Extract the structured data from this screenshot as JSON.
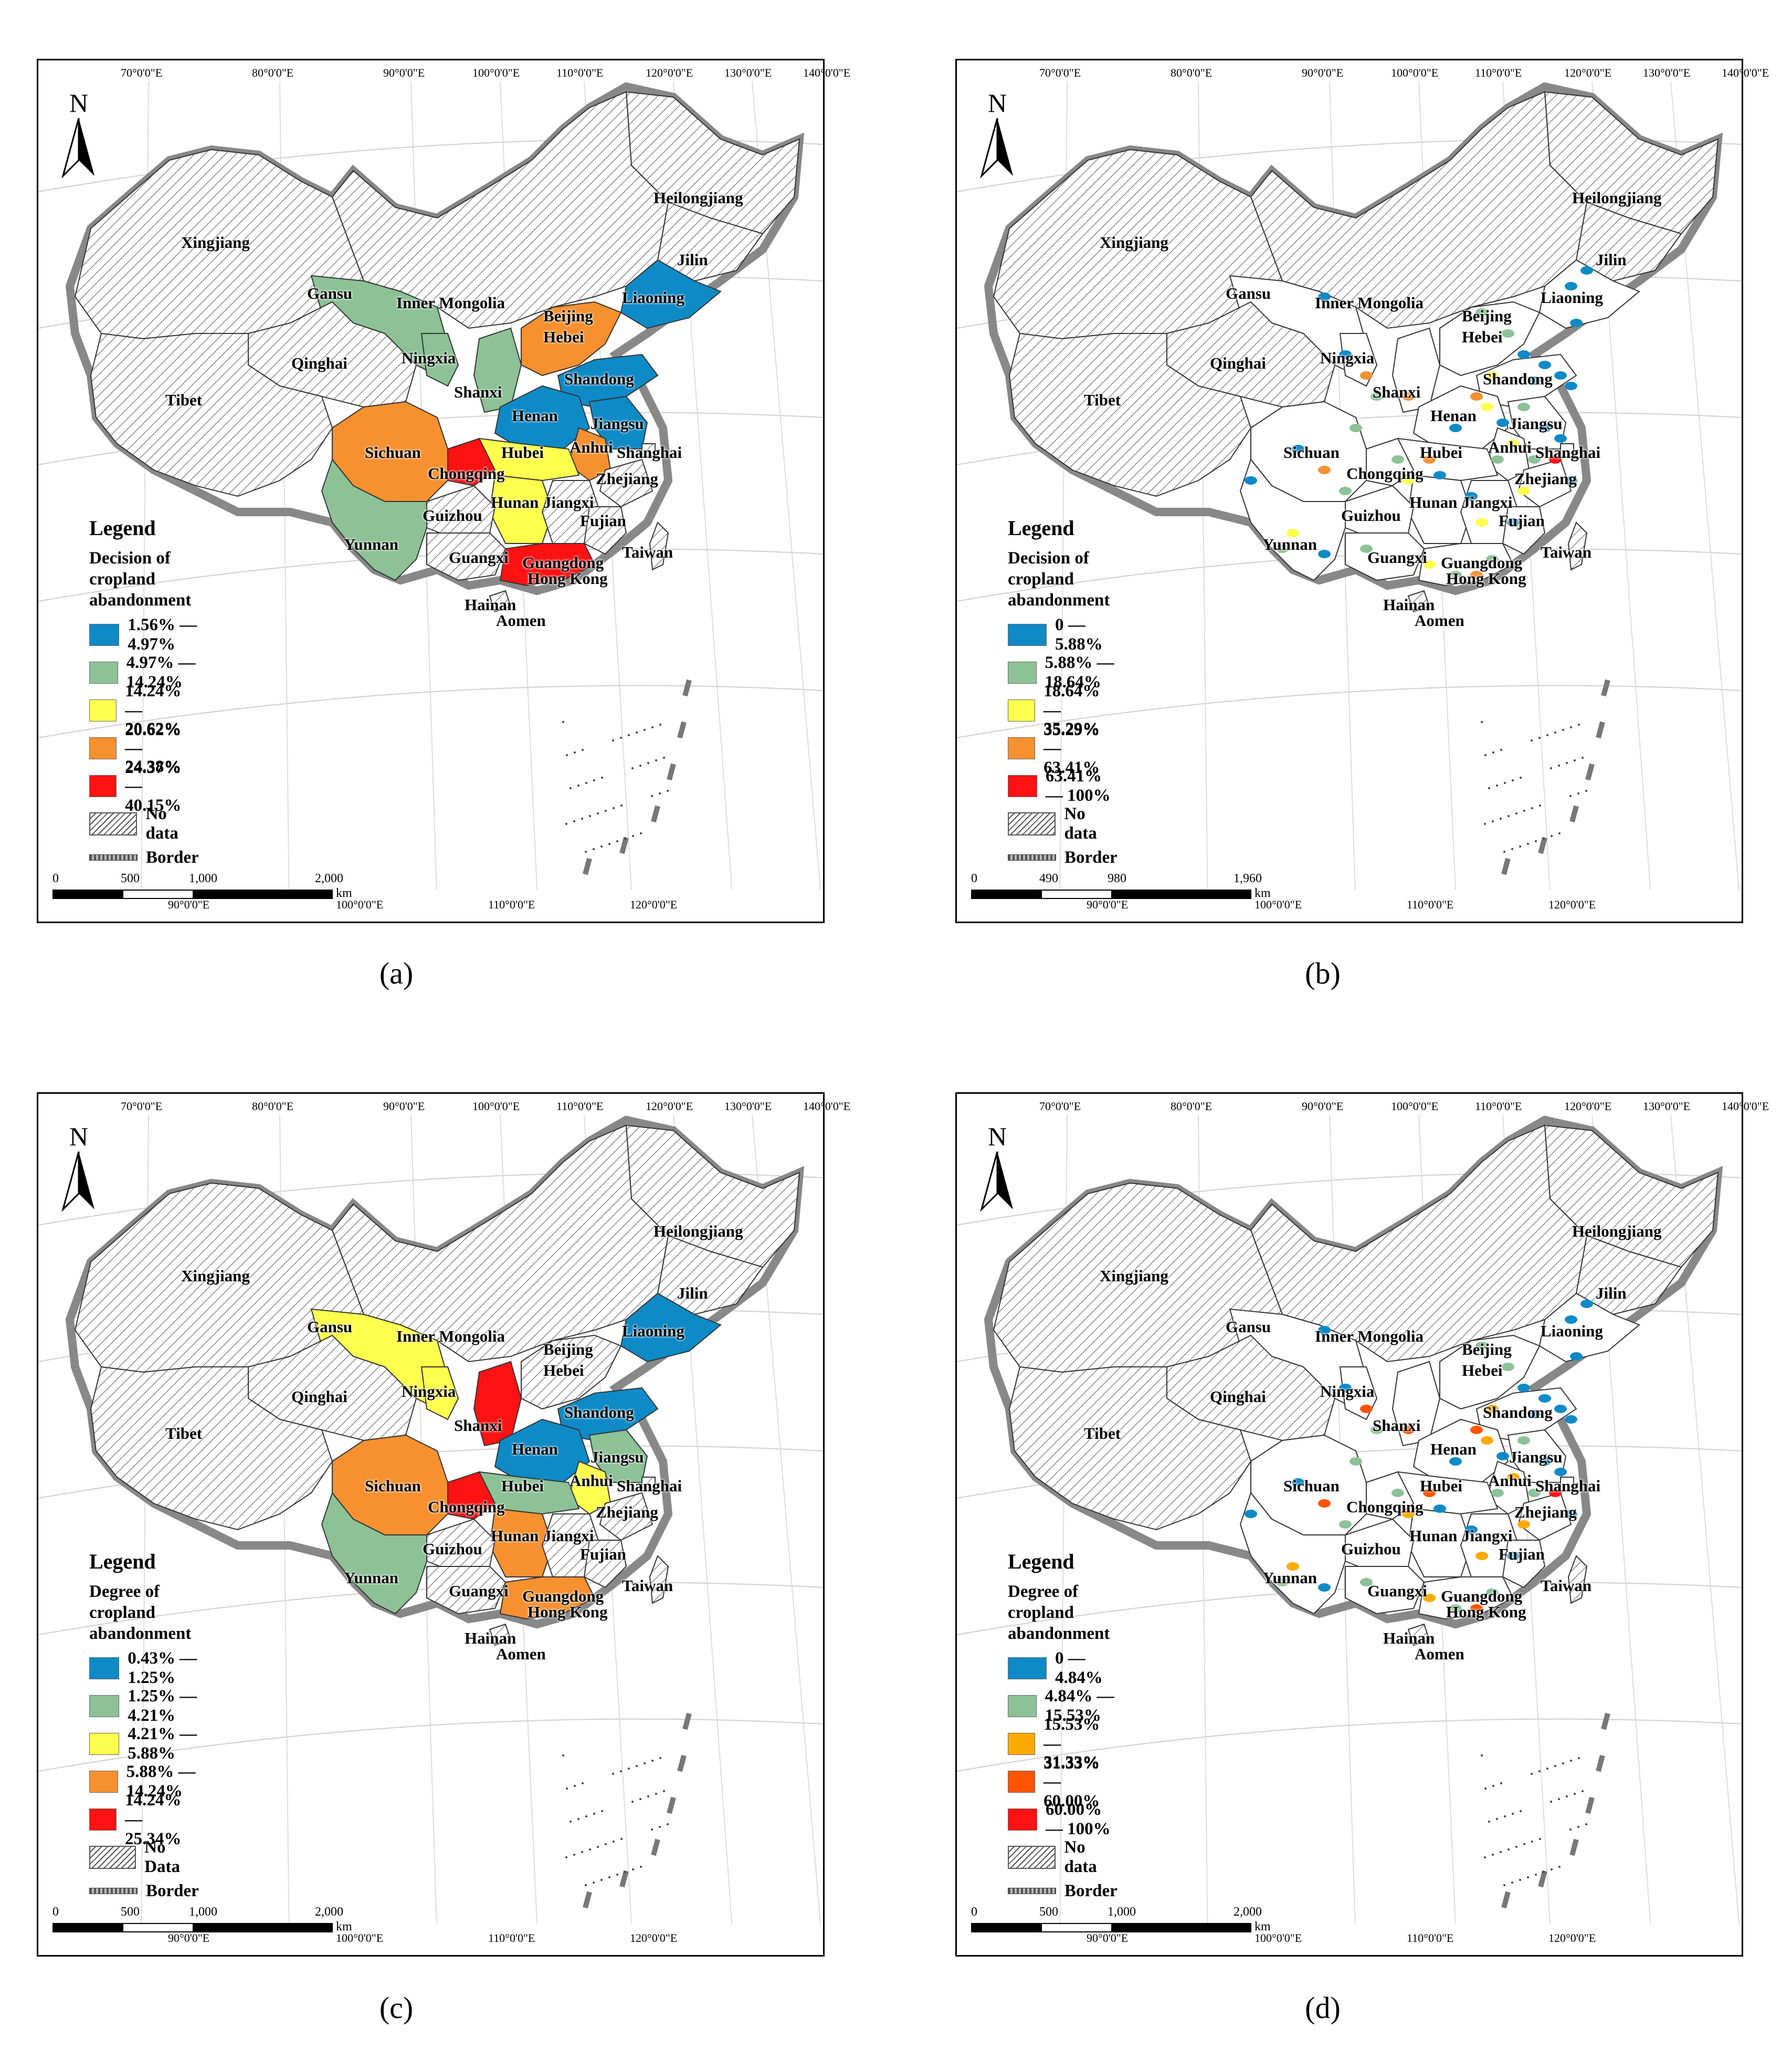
{
  "graticule": {
    "top": [
      "70°0'0\"E",
      "80°0'0\"E",
      "90°0'0\"E",
      "100°0'0\"E",
      "110°0'0\"E",
      "120°0'0\"E",
      "130°0'0\"E",
      "140°0'0\"E"
    ],
    "bottom": [
      "90°0'0\"E",
      "100°0'0\"E",
      "110°0'0\"E",
      "120°0'0\"E"
    ]
  },
  "north_label": "N",
  "border_label": "Border",
  "legend_title": "Legend",
  "scale_unit": "km",
  "panels": [
    {
      "caption": "(a)",
      "subtitle_line1": "Decision of",
      "subtitle_line2": "cropland abandonment",
      "classes": [
        {
          "label": "1.56% — 4.97%",
          "color": "#0e8ac7"
        },
        {
          "label": "4.97% — 14.24%",
          "color": "#8cc296"
        },
        {
          "label": "14.24% — 20.62%",
          "color": "#ffff4d"
        },
        {
          "label": "20.62% — 24.37%",
          "color": "#f7912f"
        },
        {
          "label": "24.38% — 40.15%",
          "color": "#ff1212"
        }
      ],
      "nodata_label": "No data",
      "scale": [
        "0",
        "500",
        "1,000",
        "2,000"
      ],
      "provinces": [
        "Heilongjiang",
        "Xingjiang",
        "Jilin",
        "Gansu",
        "Inner Mongolia",
        "Liaoning",
        "Beijing",
        "Hebei",
        "Qinghai",
        "Ningxia",
        "Shandong",
        "Shanxi",
        "Tibet",
        "Henan",
        "Jiangsu",
        "Anhui",
        "Sichuan",
        "Hubei",
        "Shanghai",
        "Chongqing",
        "Zhejiang",
        "Hunan",
        "Jiangxi",
        "Guizhou",
        "Fujian",
        "Yunnan",
        "Taiwan",
        "Guangxi",
        "Guangdong",
        "Hong Kong",
        "Hainan",
        "Aomen"
      ]
    },
    {
      "caption": "(b)",
      "subtitle_line1": "Decision of",
      "subtitle_line2": "cropland abandonment",
      "classes": [
        {
          "label": "0 — 5.88%",
          "color": "#0e8ac7"
        },
        {
          "label": "5.88% — 18.64%",
          "color": "#8cc296"
        },
        {
          "label": "18.64% — 35.29%",
          "color": "#ffff4d"
        },
        {
          "label": "35.29% — 63.41%",
          "color": "#f7912f"
        },
        {
          "label": "63.41% — 100%",
          "color": "#ff1212"
        }
      ],
      "nodata_label": "No data",
      "scale": [
        "0",
        "490",
        "980",
        "1,960"
      ],
      "provinces": [
        "Heilongjiang",
        "Xingjiang",
        "Jilin",
        "Gansu",
        "Inner Mongolia",
        "Liaoning",
        "Beijing",
        "Hebei",
        "Qinghai",
        "Ningxia",
        "Shandong",
        "Shanxi",
        "Tibet",
        "Henan",
        "Jiangsu",
        "Anhui",
        "Sichuan",
        "Hubei",
        "Shanghai",
        "Chongqing",
        "Zhejiang",
        "Hunan",
        "Jiangxi",
        "Guizhou",
        "Fujian",
        "Yunnan",
        "Taiwan",
        "Guangxi",
        "Guangdong",
        "Hong Kong",
        "Hainan",
        "Aomen"
      ]
    },
    {
      "caption": "(c)",
      "subtitle_line1": "Degree of",
      "subtitle_line2": "cropland abandonment",
      "classes": [
        {
          "label": "0.43% — 1.25%",
          "color": "#0e8ac7"
        },
        {
          "label": "1.25% — 4.21%",
          "color": "#8cc296"
        },
        {
          "label": "4.21% — 5.88%",
          "color": "#ffff4d"
        },
        {
          "label": "5.88% — 14.24%",
          "color": "#f7912f"
        },
        {
          "label": "14.24% — 25.34%",
          "color": "#ff1212"
        }
      ],
      "nodata_label": "No Data",
      "scale": [
        "0",
        "500",
        "1,000",
        "2,000"
      ],
      "provinces": [
        "Heilongjiang",
        "Xingjiang",
        "Jilin",
        "Gansu",
        "Inner Mongolia",
        "Liaoning",
        "Beijing",
        "Hebei",
        "Qinghai",
        "Ningxia",
        "Shandong",
        "Shanxi",
        "Tibet",
        "Henan",
        "Jiangsu",
        "Anhui",
        "Sichuan",
        "Hubei",
        "Shanghai",
        "Chongqing",
        "Zhejiang",
        "Hunan",
        "Jiangxi",
        "Guizhou",
        "Fujian",
        "Yunnan",
        "Taiwan",
        "Guangxi",
        "Guangdong",
        "Hong Kong",
        "Hainan",
        "Aomen"
      ]
    },
    {
      "caption": "(d)",
      "subtitle_line1": "Degree of",
      "subtitle_line2": "cropland abandonment",
      "classes": [
        {
          "label": "0 — 4.84%",
          "color": "#0e8ac7"
        },
        {
          "label": "4.84% — 15.53%",
          "color": "#8cc296"
        },
        {
          "label": "15.53% — 31.33%",
          "color": "#ffaa00"
        },
        {
          "label": "31.33% — 60.00%",
          "color": "#ff5500"
        },
        {
          "label": "60.00% — 100%",
          "color": "#ff1212"
        }
      ],
      "nodata_label": "No data",
      "scale": [
        "0",
        "500",
        "1,000",
        "2,000"
      ],
      "provinces": [
        "Heilongjiang",
        "Xingjiang",
        "Jilin",
        "Gansu",
        "Inner Mongolia",
        "Liaoning",
        "Beijing",
        "Hebei",
        "Qinghai",
        "Ningxia",
        "Shandong",
        "Shanxi",
        "Tibet",
        "Henan",
        "Jiangsu",
        "Anhui",
        "Sichuan",
        "Hubei",
        "Shanghai",
        "Chongqing",
        "Zhejiang",
        "Hunan",
        "Jiangxi",
        "Guizhou",
        "Fujian",
        "Yunnan",
        "Taiwan",
        "Guangxi",
        "Guangdong",
        "Hong Kong",
        "Hainan",
        "Aomen"
      ]
    }
  ]
}
